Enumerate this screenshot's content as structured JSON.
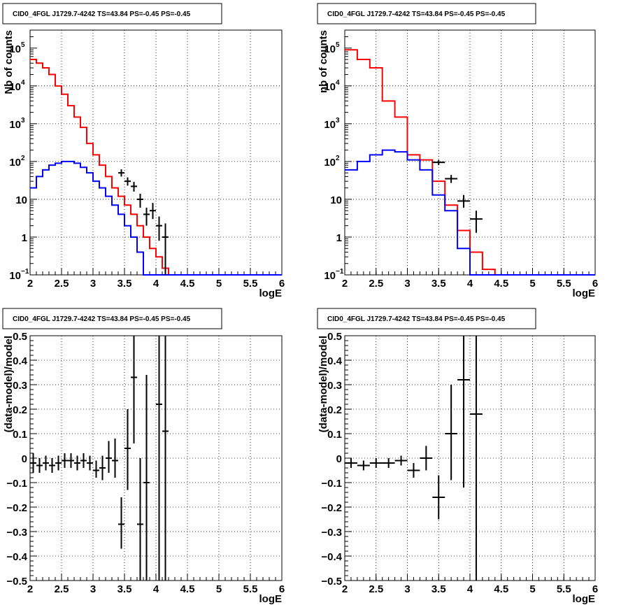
{
  "chart_data": [
    {
      "type": "line",
      "title": "CID0_4FGL J1729.7-4242 TS=43.84 PS=-0.45 PS=-0.45",
      "xlabel": "logE",
      "ylabel": "Nb of counts",
      "xlim": [
        2,
        6
      ],
      "ylim": [
        0.1,
        300000
      ],
      "yscale": "log",
      "grid": true,
      "xticks": [
        "2",
        "2.5",
        "3",
        "3.5",
        "4",
        "4.5",
        "5",
        "5.5",
        "6"
      ],
      "yticks": [
        {
          "v": 0.1,
          "base": "10",
          "exp": "−1"
        },
        {
          "v": 1,
          "base": "1",
          "exp": ""
        },
        {
          "v": 10,
          "base": "10",
          "exp": ""
        },
        {
          "v": 100,
          "base": "10",
          "exp": "2"
        },
        {
          "v": 1000,
          "base": "10",
          "exp": "3"
        },
        {
          "v": 10000,
          "base": "10",
          "exp": "4"
        },
        {
          "v": 100000,
          "base": "10",
          "exp": "5"
        }
      ],
      "bin_edges": [
        2.0,
        2.1,
        2.2,
        2.3,
        2.4,
        2.5,
        2.6,
        2.7,
        2.8,
        2.9,
        3.0,
        3.1,
        3.2,
        3.3,
        3.4,
        3.5,
        3.6,
        3.7,
        3.8,
        3.9,
        4.0,
        4.1,
        4.2,
        4.3,
        4.4,
        4.5,
        4.6,
        4.7,
        4.8,
        4.9,
        5.0,
        5.1,
        5.2,
        5.3,
        5.4,
        5.5,
        5.6,
        5.7,
        5.8,
        5.9,
        6.0
      ],
      "series": [
        {
          "color": "#ff0000",
          "kind": "hist",
          "values": [
            50000,
            40000,
            30000,
            20000,
            10000,
            6000,
            3000,
            1500,
            800,
            300,
            150,
            80,
            40,
            20,
            12,
            7,
            4,
            2,
            1,
            0.5,
            0.3,
            0.15,
            0.1,
            0.1,
            0.1,
            0.1,
            0.1,
            0.1,
            0.1,
            0.1,
            0.1,
            0.1,
            0.1,
            0.1,
            0.1,
            0.1,
            0.1,
            0.1,
            0.1,
            0.1
          ]
        },
        {
          "color": "#0000ff",
          "kind": "hist",
          "values": [
            20,
            40,
            60,
            80,
            90,
            100,
            100,
            90,
            70,
            50,
            30,
            20,
            12,
            7,
            4,
            2,
            1,
            0.4,
            0.1,
            0.1,
            0.1,
            0.1,
            0.1,
            0.1,
            0.1,
            0.1,
            0.1,
            0.1,
            0.1,
            0.1,
            0.1,
            0.1,
            0.1,
            0.1,
            0.1,
            0.1,
            0.1,
            0.1,
            0.1,
            0.1
          ]
        },
        {
          "color": "#000000",
          "kind": "points",
          "xerr": 0.05,
          "points": [
            {
              "x": 3.45,
              "y": 50,
              "lo": 40,
              "hi": 62
            },
            {
              "x": 3.55,
              "y": 30,
              "lo": 23,
              "hi": 38
            },
            {
              "x": 3.65,
              "y": 22,
              "lo": 16,
              "hi": 29
            },
            {
              "x": 3.75,
              "y": 10,
              "lo": 6,
              "hi": 14
            },
            {
              "x": 3.85,
              "y": 4,
              "lo": 2,
              "hi": 6
            },
            {
              "x": 3.95,
              "y": 5,
              "lo": 3,
              "hi": 8
            },
            {
              "x": 4.05,
              "y": 2,
              "lo": 0.8,
              "hi": 3.5
            },
            {
              "x": 4.15,
              "y": 1,
              "lo": 0.1,
              "hi": 2.3
            }
          ]
        }
      ]
    },
    {
      "type": "line",
      "title": "CID0_4FGL J1729.7-4242 TS=43.84 PS=-0.45 PS=-0.45",
      "xlabel": "logE",
      "ylabel": "nb of counts",
      "xlim": [
        2,
        6
      ],
      "ylim": [
        0.1,
        300000
      ],
      "yscale": "log",
      "grid": true,
      "xticks": [
        "2",
        "2.5",
        "3",
        "3.5",
        "4",
        "4.5",
        "5",
        "5.5",
        "6"
      ],
      "yticks": [
        {
          "v": 0.1,
          "base": "10",
          "exp": "−1"
        },
        {
          "v": 1,
          "base": "1",
          "exp": ""
        },
        {
          "v": 10,
          "base": "10",
          "exp": ""
        },
        {
          "v": 100,
          "base": "10",
          "exp": "2"
        },
        {
          "v": 1000,
          "base": "10",
          "exp": "3"
        },
        {
          "v": 10000,
          "base": "10",
          "exp": "4"
        },
        {
          "v": 100000,
          "base": "10",
          "exp": "5"
        }
      ],
      "bin_edges": [
        2.0,
        2.2,
        2.4,
        2.6,
        2.8,
        3.0,
        3.2,
        3.4,
        3.6,
        3.8,
        4.0,
        4.2,
        4.4,
        4.6,
        4.8,
        5.0,
        5.2,
        5.4,
        5.6,
        5.8,
        6.0
      ],
      "series": [
        {
          "color": "#ff0000",
          "kind": "hist",
          "values": [
            90000,
            50000,
            30000,
            4000,
            1500,
            150,
            110,
            30,
            7,
            1.5,
            0.4,
            0.14,
            0.1,
            0.1,
            0.1,
            0.1,
            0.1,
            0.1,
            0.1,
            0.1
          ]
        },
        {
          "color": "#0000ff",
          "kind": "hist",
          "values": [
            60,
            100,
            150,
            200,
            180,
            110,
            60,
            13,
            5,
            0.5,
            0.1,
            0.1,
            0.1,
            0.1,
            0.1,
            0.1,
            0.1,
            0.1,
            0.1,
            0.1
          ]
        },
        {
          "color": "#000000",
          "kind": "points",
          "xerr": 0.1,
          "points": [
            {
              "x": 3.5,
              "y": 95,
              "lo": 80,
              "hi": 110
            },
            {
              "x": 3.7,
              "y": 35,
              "lo": 27,
              "hi": 44
            },
            {
              "x": 3.9,
              "y": 9,
              "lo": 6,
              "hi": 13
            },
            {
              "x": 4.1,
              "y": 3,
              "lo": 1.3,
              "hi": 5
            }
          ]
        }
      ]
    },
    {
      "type": "scatter",
      "title": "CID0_4FGL J1729.7-4242 TS=43.84 PS=-0.45 PS=-0.45",
      "xlabel": "logE",
      "ylabel": "(data-model)/model",
      "xlim": [
        2,
        6
      ],
      "ylim": [
        -0.5,
        0.5
      ],
      "yscale": "linear",
      "grid": true,
      "xticks": [
        "2",
        "2.5",
        "3",
        "3.5",
        "4",
        "4.5",
        "5",
        "5.5",
        "6"
      ],
      "yticks": [
        {
          "v": -0.5,
          "base": "−0.5",
          "exp": ""
        },
        {
          "v": -0.4,
          "base": "−0.4",
          "exp": ""
        },
        {
          "v": -0.3,
          "base": "−0.3",
          "exp": ""
        },
        {
          "v": -0.2,
          "base": "−0.2",
          "exp": ""
        },
        {
          "v": -0.1,
          "base": "−0.1",
          "exp": ""
        },
        {
          "v": 0,
          "base": "0",
          "exp": ""
        },
        {
          "v": 0.1,
          "base": "0.1",
          "exp": ""
        },
        {
          "v": 0.2,
          "base": "0.2",
          "exp": ""
        },
        {
          "v": 0.3,
          "base": "0.3",
          "exp": ""
        },
        {
          "v": 0.4,
          "base": "0.4",
          "exp": ""
        },
        {
          "v": 0.5,
          "base": "0.5",
          "exp": ""
        }
      ],
      "series": [
        {
          "color": "#000000",
          "kind": "points",
          "xerr": 0.05,
          "points": [
            {
              "x": 2.05,
              "y": -0.02,
              "lo": -0.06,
              "hi": 0.02
            },
            {
              "x": 2.15,
              "y": -0.03,
              "lo": -0.06,
              "hi": 0.0
            },
            {
              "x": 2.25,
              "y": -0.02,
              "lo": -0.05,
              "hi": 0.01
            },
            {
              "x": 2.35,
              "y": -0.03,
              "lo": -0.06,
              "hi": 0.0
            },
            {
              "x": 2.45,
              "y": -0.02,
              "lo": -0.05,
              "hi": 0.01
            },
            {
              "x": 2.55,
              "y": -0.01,
              "lo": -0.04,
              "hi": 0.02
            },
            {
              "x": 2.65,
              "y": -0.01,
              "lo": -0.04,
              "hi": 0.02
            },
            {
              "x": 2.75,
              "y": -0.02,
              "lo": -0.05,
              "hi": 0.01
            },
            {
              "x": 2.85,
              "y": -0.01,
              "lo": -0.04,
              "hi": 0.02
            },
            {
              "x": 2.95,
              "y": -0.02,
              "lo": -0.05,
              "hi": 0.01
            },
            {
              "x": 3.05,
              "y": -0.05,
              "lo": -0.08,
              "hi": -0.01
            },
            {
              "x": 3.15,
              "y": -0.04,
              "lo": -0.09,
              "hi": 0.01
            },
            {
              "x": 3.25,
              "y": 0.0,
              "lo": -0.06,
              "hi": 0.07
            },
            {
              "x": 3.35,
              "y": -0.01,
              "lo": -0.08,
              "hi": 0.08
            },
            {
              "x": 3.45,
              "y": -0.27,
              "lo": -0.37,
              "hi": -0.16
            },
            {
              "x": 3.55,
              "y": 0.04,
              "lo": -0.13,
              "hi": 0.2
            },
            {
              "x": 3.65,
              "y": 0.33,
              "lo": 0.06,
              "hi": 0.5
            },
            {
              "x": 3.75,
              "y": -0.27,
              "lo": -0.5,
              "hi": 0.0
            },
            {
              "x": 3.85,
              "y": -0.1,
              "lo": -0.5,
              "hi": 0.34
            },
            {
              "x": 4.05,
              "y": 0.22,
              "lo": -0.5,
              "hi": 0.5
            },
            {
              "x": 4.15,
              "y": 0.11,
              "lo": -0.5,
              "hi": 0.5
            }
          ]
        }
      ]
    },
    {
      "type": "scatter",
      "title": "CID0_4FGL J1729.7-4242 TS=43.84 PS=-0.45 PS=-0.45",
      "xlabel": "logE",
      "ylabel": "(data-model)/model",
      "xlim": [
        2,
        6
      ],
      "ylim": [
        -0.5,
        0.5
      ],
      "yscale": "linear",
      "grid": true,
      "xticks": [
        "2",
        "2.5",
        "3",
        "3.5",
        "4",
        "4.5",
        "5",
        "5.5",
        "6"
      ],
      "yticks": [
        {
          "v": -0.5,
          "base": "−0.5",
          "exp": ""
        },
        {
          "v": -0.4,
          "base": "−0.4",
          "exp": ""
        },
        {
          "v": -0.3,
          "base": "−0.3",
          "exp": ""
        },
        {
          "v": -0.2,
          "base": "−0.2",
          "exp": ""
        },
        {
          "v": -0.1,
          "base": "−0.1",
          "exp": ""
        },
        {
          "v": 0,
          "base": "0",
          "exp": ""
        },
        {
          "v": 0.1,
          "base": "0.1",
          "exp": ""
        },
        {
          "v": 0.2,
          "base": "0.2",
          "exp": ""
        },
        {
          "v": 0.3,
          "base": "0.3",
          "exp": ""
        },
        {
          "v": 0.4,
          "base": "0.4",
          "exp": ""
        },
        {
          "v": 0.5,
          "base": "0.5",
          "exp": ""
        }
      ],
      "series": [
        {
          "color": "#000000",
          "kind": "points",
          "xerr": 0.1,
          "points": [
            {
              "x": 2.1,
              "y": -0.02,
              "lo": -0.04,
              "hi": 0.0
            },
            {
              "x": 2.3,
              "y": -0.03,
              "lo": -0.05,
              "hi": -0.01
            },
            {
              "x": 2.5,
              "y": -0.02,
              "lo": -0.04,
              "hi": 0.0
            },
            {
              "x": 2.7,
              "y": -0.02,
              "lo": -0.04,
              "hi": 0.0
            },
            {
              "x": 2.9,
              "y": -0.01,
              "lo": -0.03,
              "hi": 0.01
            },
            {
              "x": 3.1,
              "y": -0.05,
              "lo": -0.08,
              "hi": -0.02
            },
            {
              "x": 3.3,
              "y": 0.0,
              "lo": -0.05,
              "hi": 0.05
            },
            {
              "x": 3.5,
              "y": -0.16,
              "lo": -0.25,
              "hi": -0.07
            },
            {
              "x": 3.7,
              "y": 0.1,
              "lo": -0.09,
              "hi": 0.3
            },
            {
              "x": 3.9,
              "y": 0.32,
              "lo": -0.12,
              "hi": 0.5
            },
            {
              "x": 4.1,
              "y": 0.18,
              "lo": -0.5,
              "hi": 0.5
            }
          ]
        }
      ]
    }
  ]
}
